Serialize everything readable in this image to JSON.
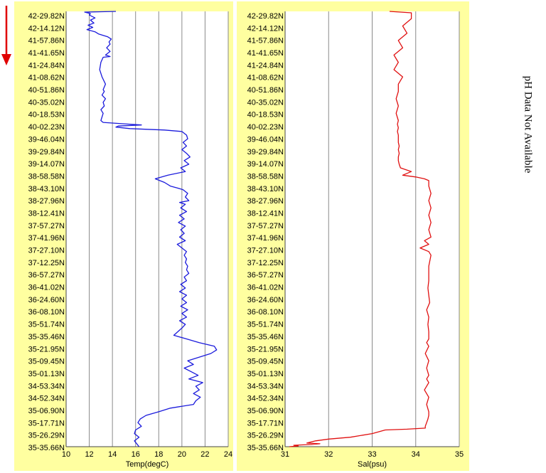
{
  "direction_arrow": {
    "icon": "down-arrow-icon",
    "color": "#e00000"
  },
  "note": "pH Data Not Available",
  "chart_data": [
    {
      "type": "line",
      "xlabel": "Temp(degC)",
      "ylabel": "",
      "xlim": [
        10,
        24
      ],
      "xticks": [
        "10",
        "12",
        "14",
        "16",
        "18",
        "20",
        "22",
        "24"
      ],
      "y_tick_labels": [
        "42-29.82N",
        "42-14.12N",
        "41-57.86N",
        "41-41.65N",
        "41-24.84N",
        "41-08.62N",
        "40-51.86N",
        "40-35.02N",
        "40-18.53N",
        "40-02.23N",
        "39-46.04N",
        "39-29.84N",
        "39-14.07N",
        "38-58.58N",
        "38-43.10N",
        "38-27.96N",
        "38-12.41N",
        "37-57.27N",
        "37-41.96N",
        "37-27.10N",
        "37-12.25N",
        "36-57.27N",
        "36-41.02N",
        "36-24.60N",
        "36-08.10N",
        "35-51.74N",
        "35-35.46N",
        "35-21.95N",
        "35-09.45N",
        "35-01.13N",
        "34-53.34N",
        "34-52.34N",
        "35-06.90N",
        "35-17.71N",
        "35-26.29N",
        "35-35.66N"
      ],
      "grid": true,
      "background": "#ffffa0",
      "series": [
        {
          "color": "#1a1adc",
          "x": [
            14.3,
            11.6,
            12.1,
            12.0,
            12.5,
            12.1,
            12.4,
            11.9,
            12.3,
            11.8,
            12.5,
            12.8,
            13.2,
            13.6,
            13.9,
            13.7,
            13.8,
            13.5,
            13.8,
            13.4,
            13.8,
            13.2,
            13.0,
            12.9,
            13.1,
            13.4,
            13.2,
            13.3,
            13.1,
            13.4,
            13.2,
            13.3,
            13.0,
            13.2,
            13.1,
            13.0,
            13.2,
            15.5,
            16.5,
            14.5,
            14.3,
            15.5,
            18.5,
            20.0,
            20.4,
            20.5,
            20.1,
            20.4,
            20.0,
            20.4,
            20.7,
            20.2,
            20.6,
            19.9,
            20.3,
            18.8,
            17.7,
            18.5,
            19.0,
            19.6,
            20.1,
            20.5,
            20.3,
            20.6,
            19.8,
            20.3,
            19.9,
            20.4,
            19.8,
            20.2,
            19.7,
            20.3,
            19.9,
            20.2,
            19.8,
            20.3,
            19.6,
            20.0,
            20.4,
            20.2,
            20.4,
            20.3,
            20.5,
            20.4,
            20.6,
            20.2,
            20.4,
            19.9,
            20.3,
            19.8,
            20.4,
            20.0,
            20.4,
            19.9,
            20.5,
            20.0,
            20.4,
            19.8,
            20.3,
            20.0,
            19.3,
            20.4,
            21.5,
            22.8,
            23.0,
            22.5,
            21.5,
            20.5,
            21.0,
            20.2,
            20.8,
            21.4,
            20.6,
            21.8,
            21.2,
            21.5,
            21.0,
            21.6,
            21.2,
            21.0,
            19.0,
            18.0,
            16.9,
            16.4,
            16.2,
            16.5,
            16.0,
            15.9,
            16.3,
            15.9,
            16.3
          ],
          "y": [
            0,
            2,
            6,
            10,
            18,
            24,
            32,
            38,
            44,
            50,
            56,
            62,
            66,
            70,
            76,
            84,
            90,
            100,
            110,
            120,
            124,
            126,
            140,
            160,
            180,
            200,
            215,
            220,
            230,
            240,
            250,
            260,
            270,
            280,
            290,
            300,
            305,
            310,
            312,
            315,
            318,
            322,
            326,
            330,
            340,
            350,
            360,
            370,
            380,
            390,
            400,
            410,
            420,
            430,
            440,
            450,
            460,
            470,
            480,
            485,
            490,
            500,
            510,
            520,
            525,
            530,
            540,
            550,
            560,
            570,
            580,
            590,
            600,
            610,
            620,
            630,
            640,
            650,
            660,
            670,
            680,
            690,
            700,
            710,
            720,
            730,
            740,
            750,
            760,
            770,
            780,
            790,
            800,
            810,
            820,
            830,
            840,
            850,
            860,
            870,
            890,
            900,
            910,
            920,
            930,
            940,
            950,
            960,
            970,
            980,
            990,
            1000,
            1010,
            1020,
            1030,
            1040,
            1050,
            1060,
            1070,
            1080,
            1090,
            1100,
            1110,
            1120,
            1130,
            1140,
            1150,
            1160,
            1170,
            1180,
            1196
          ]
        }
      ]
    },
    {
      "type": "line",
      "xlabel": "Sal(psu)",
      "ylabel": "",
      "xlim": [
        31,
        35
      ],
      "xticks": [
        "31",
        "32",
        "33",
        "34",
        "35"
      ],
      "y_tick_labels": [
        "42-29.82N",
        "42-14.12N",
        "41-57.86N",
        "41-41.65N",
        "41-24.84N",
        "41-08.62N",
        "40-51.86N",
        "40-35.02N",
        "40-18.53N",
        "40-02.23N",
        "39-46.04N",
        "39-29.84N",
        "39-14.07N",
        "38-58.58N",
        "38-43.10N",
        "38-27.96N",
        "38-12.41N",
        "37-57.27N",
        "37-41.96N",
        "37-27.10N",
        "37-12.25N",
        "36-57.27N",
        "36-41.02N",
        "36-24.60N",
        "36-08.10N",
        "35-51.74N",
        "35-35.46N",
        "35-21.95N",
        "35-09.45N",
        "35-01.13N",
        "34-53.34N",
        "34-52.34N",
        "35-06.90N",
        "35-17.71N",
        "35-26.29N",
        "35-35.66N"
      ],
      "grid": true,
      "background": "#ffffa0",
      "series": [
        {
          "color": "#e01010",
          "x": [
            33.4,
            33.9,
            33.9,
            33.7,
            33.8,
            33.6,
            33.7,
            33.5,
            33.6,
            33.5,
            33.7,
            33.6,
            33.6,
            33.55,
            33.6,
            33.55,
            33.6,
            33.58,
            33.6,
            33.58,
            33.6,
            33.6,
            33.6,
            33.62,
            33.6,
            33.62,
            33.6,
            33.6,
            33.62,
            33.65,
            33.9,
            33.7,
            34.0,
            34.2,
            34.3,
            34.3,
            34.35,
            34.3,
            34.35,
            34.3,
            34.35,
            34.3,
            34.35,
            34.2,
            34.3,
            34.1,
            34.3,
            34.35,
            34.3,
            34.3,
            34.28,
            34.3,
            34.32,
            34.25,
            34.3,
            34.28,
            34.3,
            34.3,
            34.25,
            34.3,
            34.22,
            34.3,
            34.25,
            34.3,
            34.25,
            34.3,
            34.2,
            34.3,
            34.25,
            34.3,
            34.3,
            34.28,
            34.25,
            34.22,
            34.22,
            33.8,
            33.3,
            33.0,
            32.5,
            32.0,
            31.7,
            31.5,
            31.8,
            31.6,
            31.2,
            31.3,
            31.1
          ],
          "y": [
            0,
            4,
            20,
            40,
            60,
            80,
            100,
            120,
            140,
            160,
            180,
            200,
            220,
            240,
            260,
            280,
            300,
            310,
            320,
            330,
            340,
            350,
            360,
            370,
            380,
            390,
            400,
            410,
            420,
            430,
            440,
            450,
            455,
            460,
            465,
            480,
            500,
            520,
            540,
            560,
            580,
            600,
            620,
            630,
            640,
            650,
            660,
            670,
            700,
            740,
            760,
            780,
            800,
            820,
            840,
            860,
            880,
            900,
            910,
            920,
            940,
            960,
            980,
            1000,
            1010,
            1020,
            1040,
            1060,
            1080,
            1100,
            1110,
            1120,
            1130,
            1140,
            1145,
            1148,
            1150,
            1160,
            1170,
            1175,
            1180,
            1186,
            1188,
            1190,
            1192,
            1194,
            1196
          ]
        }
      ]
    }
  ]
}
